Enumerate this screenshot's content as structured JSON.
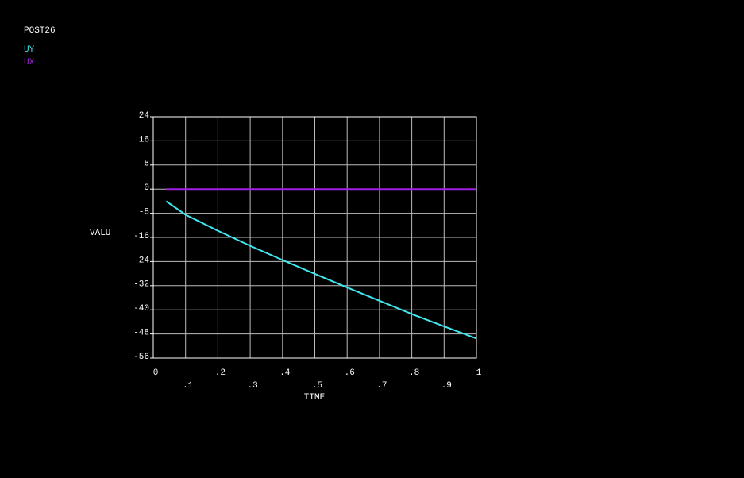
{
  "chart_data": {
    "type": "line",
    "title": "POST26",
    "x_label": "TIME",
    "y_label": "VALU",
    "x": [
      0.04,
      0.1,
      0.2,
      0.3,
      0.4,
      0.5,
      0.6,
      0.7,
      0.8,
      0.9,
      1.0
    ],
    "series": [
      {
        "name": "UY",
        "color": "#40e8f0",
        "values": [
          -4,
          -8.5,
          -13.8,
          -18.8,
          -23.5,
          -28.1,
          -32.6,
          -37,
          -41.4,
          -45.5,
          -49.5
        ]
      },
      {
        "name": "UX",
        "color": "#a020e0",
        "values": [
          0,
          0,
          0,
          0,
          0,
          0,
          0,
          0,
          0,
          0,
          0
        ]
      }
    ],
    "xlim": [
      0,
      1
    ],
    "xticks": [
      0,
      {
        "value": 0.1,
        "label": ".1"
      },
      {
        "value": 0.2,
        "label": ".2"
      },
      {
        "value": 0.3,
        "label": ".3"
      },
      {
        "value": 0.4,
        "label": ".4"
      },
      {
        "value": 0.5,
        "label": ".5"
      },
      {
        "value": 0.6,
        "label": ".6"
      },
      {
        "value": 0.7,
        "label": ".7"
      },
      {
        "value": 0.8,
        "label": ".8"
      },
      {
        "value": 0.9,
        "label": ".9"
      },
      1
    ],
    "ylim": [
      -56,
      24
    ],
    "yticks": [
      24,
      16,
      8,
      0,
      -8,
      -16,
      -24,
      -32,
      -40,
      -48,
      -56
    ],
    "grid": true
  }
}
